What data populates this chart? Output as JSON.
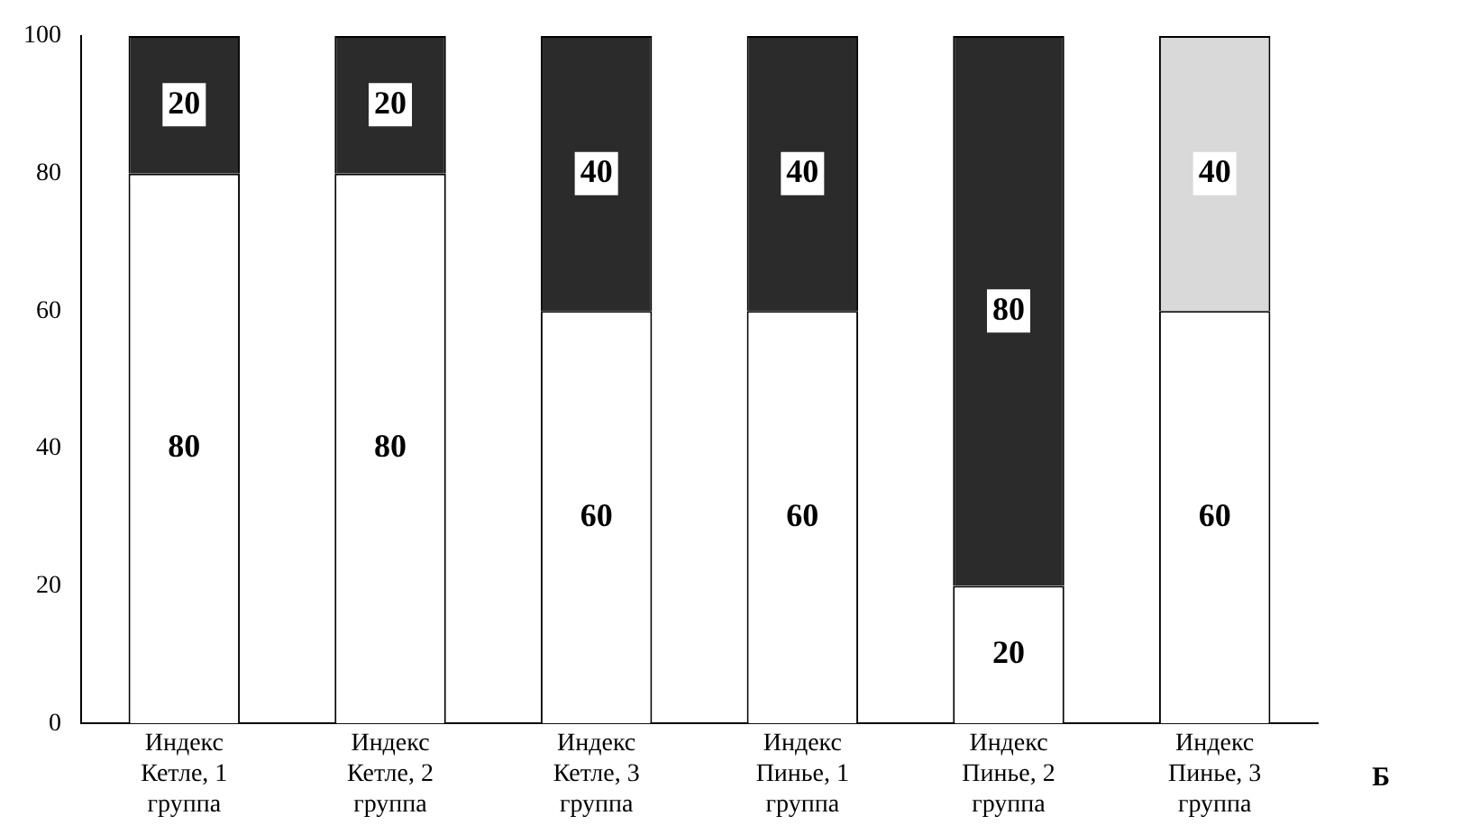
{
  "chart_data": {
    "type": "bar",
    "stacked": true,
    "data_labels": true,
    "grid": false,
    "legend": false,
    "categories": [
      "Индекс Кетле, 1 группа",
      "Индекс Кетле, 2 группа",
      "Индекс Кетле, 3 группа",
      "Индекс Пинье, 1 группа",
      "Индекс Пинье, 2 группа",
      "Индекс Пинье, 3 группа"
    ],
    "series": [
      {
        "color": "#ffffff",
        "values": [
          80,
          80,
          60,
          60,
          20,
          60
        ]
      },
      {
        "colors": [
          "#2b2b2b",
          "#2b2b2b",
          "#2b2b2b",
          "#2b2b2b",
          "#2b2b2b",
          "#d9d9d9"
        ],
        "values": [
          20,
          20,
          40,
          40,
          80,
          40
        ]
      }
    ],
    "ylim": [
      0,
      100
    ],
    "yticks": [
      0,
      20,
      40,
      60,
      80,
      100
    ],
    "annotations": [
      "Б"
    ]
  }
}
